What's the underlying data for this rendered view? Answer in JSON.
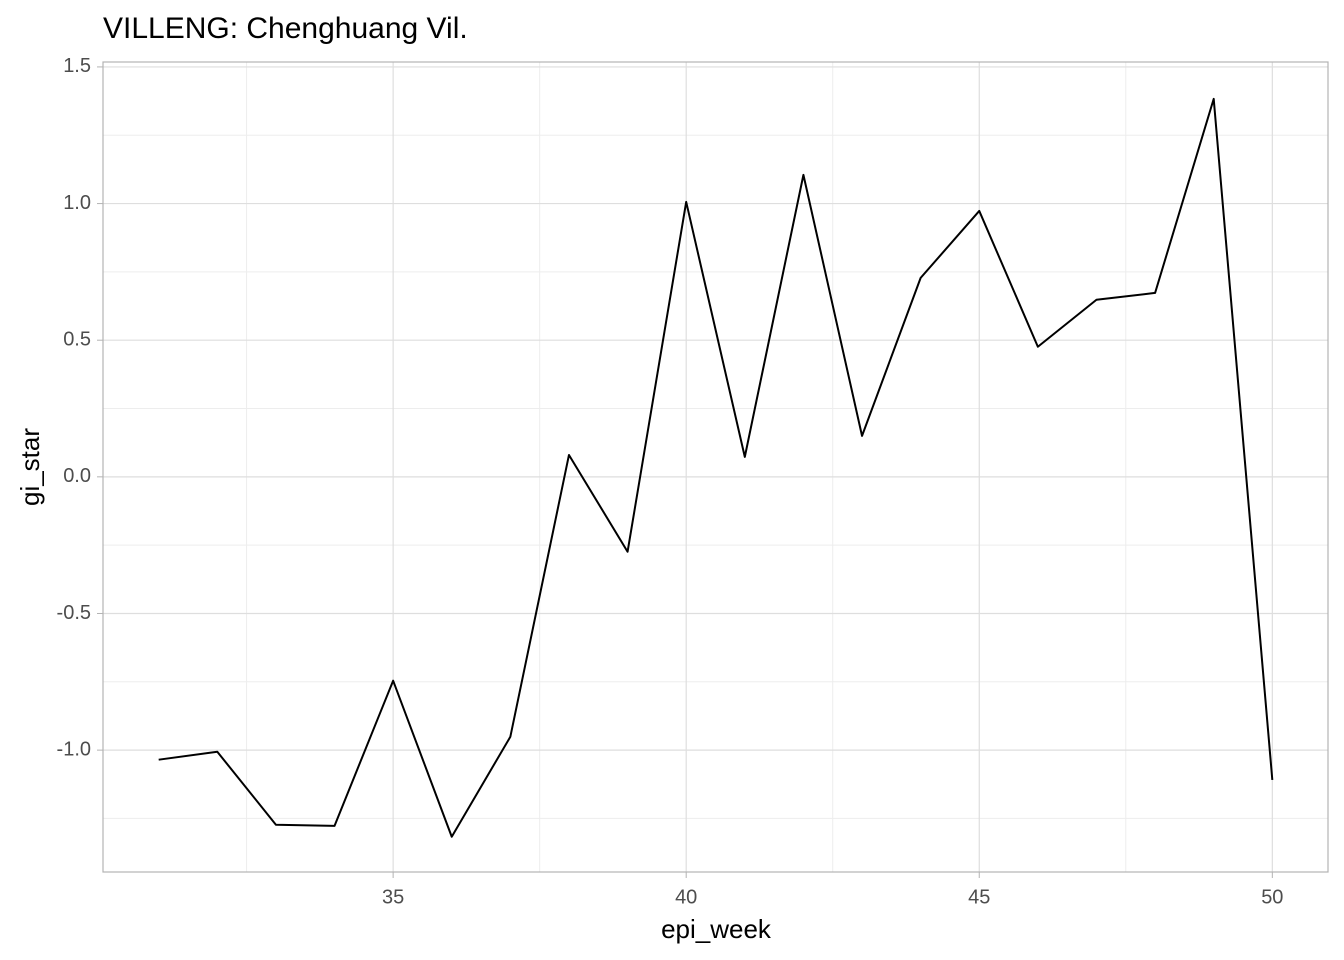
{
  "chart_data": {
    "type": "line",
    "title": "VILLENG: Chenghuang Vil.",
    "xlabel": "epi_week",
    "ylabel": "gi_star",
    "x": [
      31,
      32,
      33,
      34,
      35,
      36,
      37,
      38,
      39,
      40,
      41,
      42,
      43,
      44,
      45,
      46,
      47,
      48,
      49,
      50
    ],
    "series": [
      {
        "name": "gi_star",
        "color": "#000000",
        "values": [
          -1.035,
          -1.006,
          -1.273,
          -1.277,
          -0.746,
          -1.317,
          -0.951,
          0.08,
          -0.274,
          1.006,
          0.073,
          1.105,
          0.15,
          0.728,
          0.973,
          0.476,
          0.648,
          0.673,
          1.383,
          -1.109
        ]
      }
    ],
    "xlim": [
      30.05,
      50.95
    ],
    "xticks": [
      35,
      40,
      45,
      50
    ],
    "ylim": [
      -1.446,
      1.518
    ],
    "yticks": [
      -1,
      -0.5,
      0,
      0.5,
      1,
      1.5
    ],
    "ytick_labels": null,
    "grid": true,
    "minor_grid": true
  }
}
